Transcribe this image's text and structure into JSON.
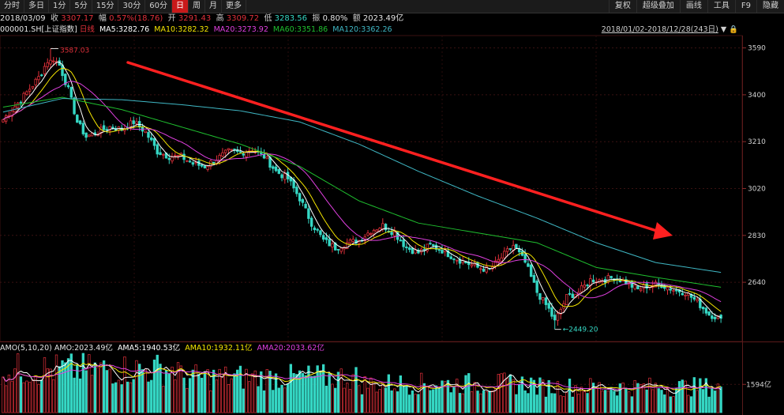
{
  "toolbar": {
    "left_buttons": [
      "分时",
      "多日",
      "1分",
      "5分",
      "15分",
      "30分",
      "60分",
      "日",
      "周",
      "月",
      "更多"
    ],
    "active_index": 7,
    "right_buttons": [
      "复权",
      "超级叠加",
      "画线",
      "工具",
      "F9",
      "隐藏"
    ]
  },
  "info": {
    "date": "2018/03/09",
    "close_label": "收",
    "close": "3307.17",
    "change_label": "幅",
    "change": "0.57%(18.76)",
    "open_label": "开",
    "open": "3291.43",
    "high_label": "高",
    "high": "3309.72",
    "low_label": "低",
    "low": "3283.56",
    "amplitude_label": "振",
    "amplitude": "0.80%",
    "amount_label": "额",
    "amount": "2023.49亿"
  },
  "ma": {
    "symbol": "000001.SH",
    "name": "[上证指数]",
    "mode": "日线",
    "ma5": "MA5:3282.76",
    "ma10": "MA10:3282.32",
    "ma20": "MA20:3273.92",
    "ma60": "MA60:3351.86",
    "ma120": "MA120:3362.26"
  },
  "range": "2018/01/02-2018/12/28(243日)",
  "amo": {
    "label": "AMO(5,10,20)",
    "amo": "AMO:2023.49亿",
    "ama5": "AMA5:1940.53亿",
    "ama10": "AMA10:1932.11亿",
    "ama20": "AMA20:2033.62亿"
  },
  "colors": {
    "up": "#e0303a",
    "down": "#35d7c4",
    "ma5": "#ffffff",
    "ma10": "#f5e600",
    "ma20": "#e040e0",
    "ma60": "#1fbf2f",
    "ma120": "#3fb7c4",
    "trend_arrow": "#ff2020"
  },
  "chart_data": {
    "type": "candlestick",
    "x_range": [
      "2018/01/02",
      "2018/12/28"
    ],
    "trading_days": 243,
    "price_axis_ticks": [
      3590,
      3400,
      3210,
      3020,
      2830,
      2640
    ],
    "ylim": [
      2400,
      3640
    ],
    "high_annotation": {
      "label": "3587.03",
      "value": 3587.03
    },
    "low_annotation": {
      "label": "2449.20",
      "value": 2449.2
    },
    "close_path_approx": [
      [
        0,
        3300
      ],
      [
        6,
        3380
      ],
      [
        12,
        3470
      ],
      [
        16,
        3560
      ],
      [
        19,
        3520
      ],
      [
        22,
        3420
      ],
      [
        25,
        3290
      ],
      [
        28,
        3230
      ],
      [
        32,
        3250
      ],
      [
        36,
        3270
      ],
      [
        40,
        3260
      ],
      [
        44,
        3290
      ],
      [
        48,
        3250
      ],
      [
        52,
        3170
      ],
      [
        56,
        3150
      ],
      [
        60,
        3150
      ],
      [
        64,
        3120
      ],
      [
        68,
        3110
      ],
      [
        72,
        3140
      ],
      [
        76,
        3170
      ],
      [
        80,
        3165
      ],
      [
        84,
        3180
      ],
      [
        88,
        3150
      ],
      [
        92,
        3090
      ],
      [
        96,
        3060
      ],
      [
        100,
        2980
      ],
      [
        104,
        2880
      ],
      [
        108,
        2810
      ],
      [
        112,
        2780
      ],
      [
        116,
        2800
      ],
      [
        120,
        2810
      ],
      [
        124,
        2850
      ],
      [
        128,
        2870
      ],
      [
        132,
        2840
      ],
      [
        136,
        2780
      ],
      [
        140,
        2760
      ],
      [
        144,
        2790
      ],
      [
        148,
        2770
      ],
      [
        152,
        2740
      ],
      [
        156,
        2720
      ],
      [
        160,
        2700
      ],
      [
        164,
        2690
      ],
      [
        168,
        2740
      ],
      [
        172,
        2790
      ],
      [
        176,
        2720
      ],
      [
        180,
        2600
      ],
      [
        184,
        2530
      ],
      [
        186,
        2480
      ],
      [
        190,
        2580
      ],
      [
        194,
        2600
      ],
      [
        198,
        2650
      ],
      [
        202,
        2650
      ],
      [
        206,
        2660
      ],
      [
        210,
        2640
      ],
      [
        214,
        2610
      ],
      [
        218,
        2630
      ],
      [
        222,
        2630
      ],
      [
        226,
        2610
      ],
      [
        230,
        2600
      ],
      [
        234,
        2560
      ],
      [
        238,
        2510
      ],
      [
        242,
        2494
      ]
    ],
    "ma120_approx": [
      [
        0,
        3330
      ],
      [
        20,
        3385
      ],
      [
        40,
        3380
      ],
      [
        60,
        3360
      ],
      [
        80,
        3335
      ],
      [
        100,
        3290
      ],
      [
        120,
        3200
      ],
      [
        140,
        3090
      ],
      [
        160,
        2990
      ],
      [
        180,
        2900
      ],
      [
        200,
        2800
      ],
      [
        220,
        2720
      ],
      [
        242,
        2680
      ]
    ],
    "ma60_approx": [
      [
        0,
        3350
      ],
      [
        20,
        3390
      ],
      [
        40,
        3340
      ],
      [
        60,
        3270
      ],
      [
        80,
        3200
      ],
      [
        100,
        3110
      ],
      [
        120,
        2970
      ],
      [
        140,
        2880
      ],
      [
        160,
        2840
      ],
      [
        180,
        2800
      ],
      [
        200,
        2700
      ],
      [
        220,
        2660
      ],
      [
        242,
        2620
      ]
    ],
    "volume_axis_ticks": [
      "1594亿"
    ],
    "volume_note": "daily AMO bars, red for up days, cyan for down days"
  }
}
